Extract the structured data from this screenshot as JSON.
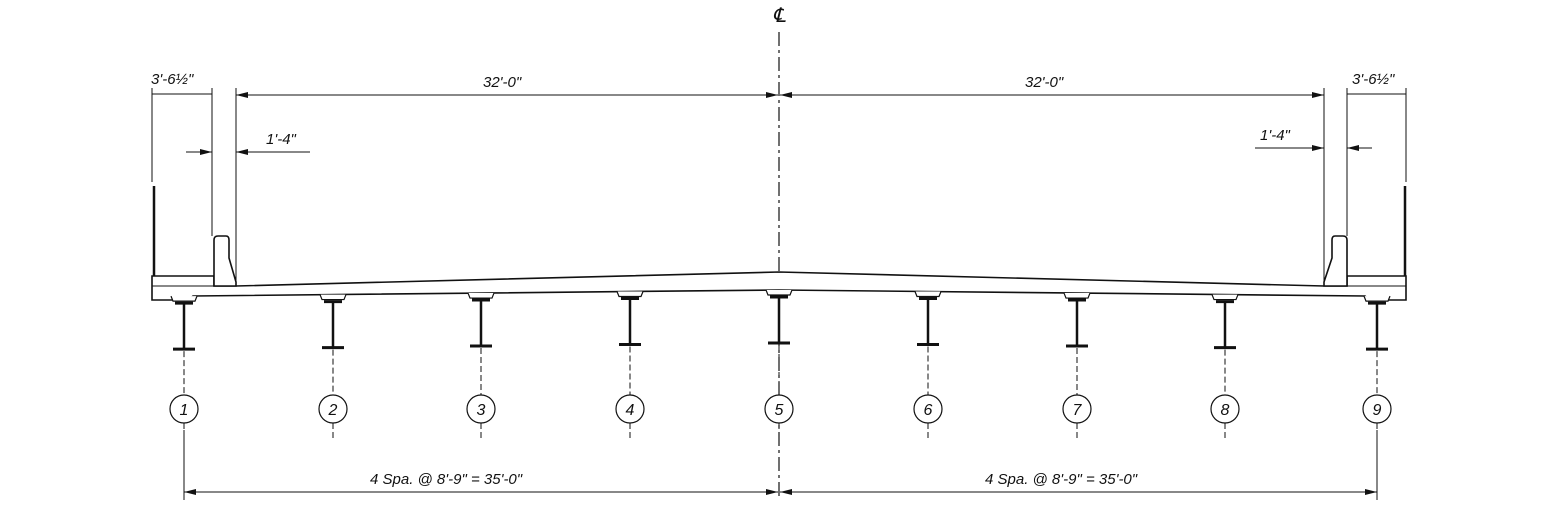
{
  "centerline_symbol": "℄",
  "top_dimensions": {
    "left_overhang": "3'-6½\"",
    "left_roadway": "32'-0\"",
    "right_roadway": "32'-0\"",
    "right_overhang": "3'-6½\""
  },
  "barrier_dimensions": {
    "left": "1'-4\"",
    "right": "1'-4\""
  },
  "girders": [
    "1",
    "2",
    "3",
    "4",
    "5",
    "6",
    "7",
    "8",
    "9"
  ],
  "bottom_dimensions": {
    "left": "4 Spa. @ 8'-9\" = 35'-0\"",
    "right": "4 Spa. @ 8'-9\" = 35'-0\""
  }
}
